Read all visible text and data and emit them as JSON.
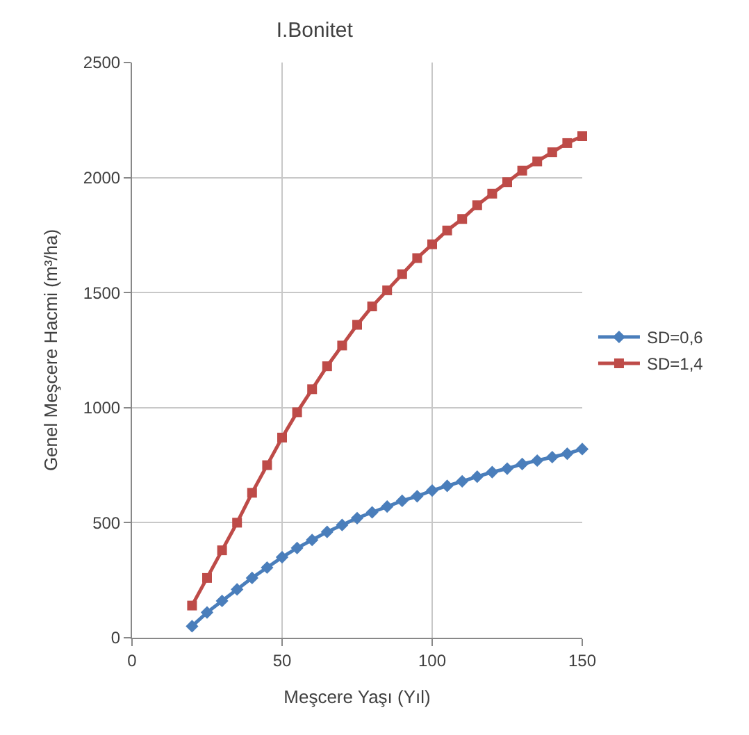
{
  "chart_data": {
    "type": "line",
    "title": "I.Bonitet",
    "xlabel": "Meşcere Yaşı (Yıl)",
    "ylabel": "Genel Meşcere Hacmi (m³/ha)",
    "x": [
      20,
      25,
      30,
      35,
      40,
      45,
      50,
      55,
      60,
      65,
      70,
      75,
      80,
      85,
      90,
      95,
      100,
      105,
      110,
      115,
      120,
      125,
      130,
      135,
      140,
      145,
      150
    ],
    "series": [
      {
        "name": "SD=0,6",
        "color": "#4a7ebb",
        "marker": "diamond",
        "values": [
          50,
          110,
          160,
          210,
          260,
          305,
          350,
          390,
          425,
          460,
          490,
          520,
          545,
          570,
          595,
          615,
          640,
          660,
          680,
          700,
          720,
          735,
          755,
          770,
          785,
          800,
          820
        ]
      },
      {
        "name": "SD=1,4",
        "color": "#be4b48",
        "marker": "square",
        "values": [
          140,
          260,
          380,
          500,
          630,
          750,
          870,
          980,
          1080,
          1180,
          1270,
          1360,
          1440,
          1510,
          1580,
          1650,
          1710,
          1770,
          1820,
          1880,
          1930,
          1980,
          2030,
          2070,
          2110,
          2150,
          2180
        ]
      }
    ],
    "xlim": [
      0,
      150
    ],
    "xticks": [
      0,
      50,
      100,
      150
    ],
    "ylim": [
      0,
      2500
    ],
    "yticks": [
      0,
      500,
      1000,
      1500,
      2000,
      2500
    ],
    "grid": true,
    "legend": "right"
  }
}
